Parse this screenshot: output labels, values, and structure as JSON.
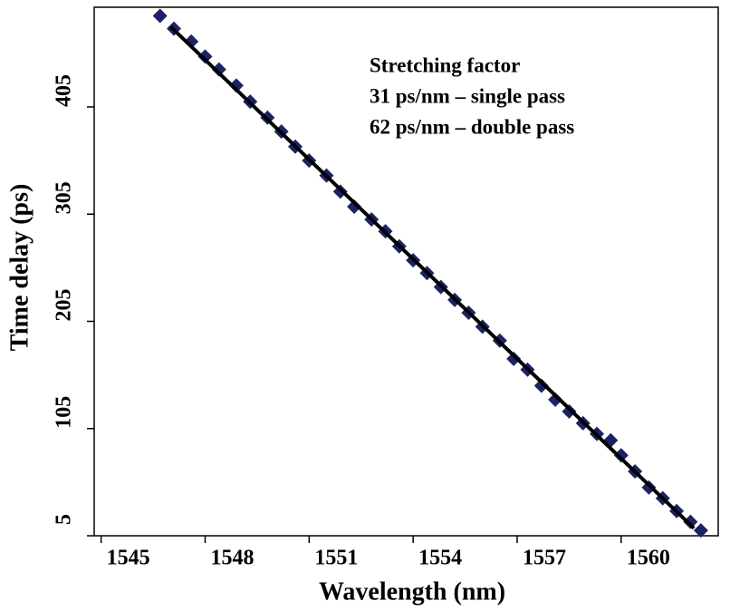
{
  "chart_data": {
    "type": "scatter",
    "x_label": "Wavelength (nm)",
    "y_label": "Time delay (ps)",
    "annotations": [
      "Stretching factor",
      "31 ps/nm – single pass",
      "62 ps/nm – double pass"
    ],
    "xlim": [
      1544.8,
      1562.8
    ],
    "ylim": [
      5,
      498
    ],
    "xticks": [
      1545,
      1548,
      1551,
      1554,
      1557,
      1560
    ],
    "yticks": [
      5,
      105,
      205,
      305,
      405
    ],
    "series": [
      {
        "color": "#1c2266",
        "x": [
          1546.7,
          1547.1,
          1547.6,
          1548.0,
          1548.4,
          1548.9,
          1549.3,
          1549.8,
          1550.2,
          1550.6,
          1551.0,
          1551.5,
          1551.9,
          1552.3,
          1552.8,
          1553.2,
          1553.6,
          1554.0,
          1554.4,
          1554.8,
          1555.2,
          1555.6,
          1556.0,
          1556.5,
          1556.9,
          1557.3,
          1557.7,
          1558.1,
          1558.5,
          1558.9,
          1559.3,
          1559.7,
          1560.0,
          1560.4,
          1560.8,
          1561.2,
          1561.6,
          1562.0,
          1562.3
        ],
        "values": [
          490,
          478,
          466,
          452,
          440,
          425,
          410,
          395,
          382,
          368,
          355,
          341,
          326,
          312,
          300,
          289,
          275,
          262,
          250,
          237,
          225,
          213,
          200,
          187,
          170,
          160,
          145,
          132,
          121,
          110,
          100,
          94,
          80,
          65,
          50,
          40,
          28,
          18,
          10
        ]
      },
      {
        "color": "#000000",
        "line": true,
        "x": [
          1547,
          1562.1
        ],
        "values": [
          480,
          12
        ]
      }
    ]
  }
}
